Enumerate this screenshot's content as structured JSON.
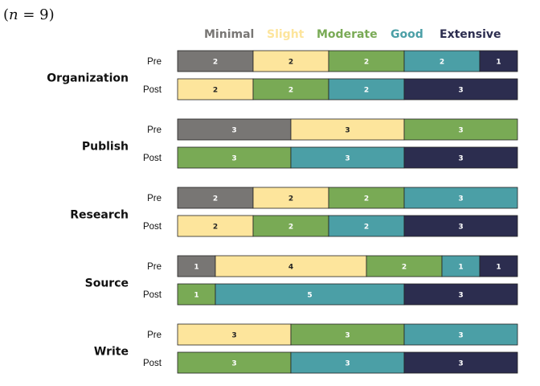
{
  "sample_note": {
    "prefix": "(",
    "symbol": "n",
    "equals": " = ",
    "value": "9",
    "suffix": ")"
  },
  "chart_data": {
    "type": "bar",
    "orientation": "horizontal",
    "stacked": true,
    "levels": [
      "Minimal",
      "Slight",
      "Moderate",
      "Good",
      "Extensive"
    ],
    "colors": {
      "Minimal": "#787674",
      "Slight": "#fde59c",
      "Moderate": "#79aa55",
      "Good": "#4b9fa6",
      "Extensive": "#2c2d4f"
    },
    "legend_position": "top",
    "total": 9,
    "groups": [
      {
        "name": "Organization",
        "rows": [
          {
            "label": "Pre",
            "values": [
              2,
              2,
              2,
              2,
              1
            ]
          },
          {
            "label": "Post",
            "values": [
              0,
              2,
              2,
              2,
              3
            ]
          }
        ]
      },
      {
        "name": "Publish",
        "rows": [
          {
            "label": "Pre",
            "values": [
              3,
              3,
              3,
              0,
              0
            ]
          },
          {
            "label": "Post",
            "values": [
              0,
              0,
              3,
              3,
              3
            ]
          }
        ]
      },
      {
        "name": "Research",
        "rows": [
          {
            "label": "Pre",
            "values": [
              2,
              2,
              2,
              3,
              0
            ]
          },
          {
            "label": "Post",
            "values": [
              0,
              2,
              2,
              2,
              3
            ]
          }
        ]
      },
      {
        "name": "Source",
        "rows": [
          {
            "label": "Pre",
            "values": [
              1,
              4,
              2,
              1,
              1
            ]
          },
          {
            "label": "Post",
            "values": [
              0,
              0,
              1,
              5,
              3
            ]
          }
        ]
      },
      {
        "name": "Write",
        "rows": [
          {
            "label": "Pre",
            "values": [
              0,
              3,
              3,
              3,
              0
            ]
          },
          {
            "label": "Post",
            "values": [
              0,
              0,
              3,
              3,
              3
            ]
          }
        ]
      }
    ]
  }
}
